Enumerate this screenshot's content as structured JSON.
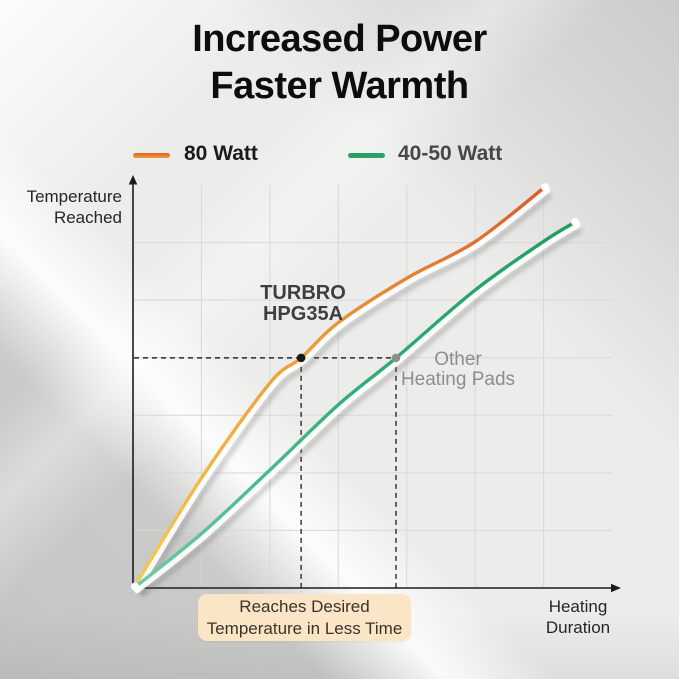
{
  "title": {
    "line1": "Increased Power",
    "line2": "Faster Warmth"
  },
  "legend": [
    {
      "label": "80 Watt",
      "color": "#E87425",
      "color_top": "#DF6526",
      "color_bottom": "#F0993A"
    },
    {
      "label": "40-50 Watt",
      "color": "#2BA269",
      "color_top": "#27A066",
      "color_bottom": "#2BA269"
    }
  ],
  "axis_labels": {
    "y1": "Temperature",
    "y2": "Reached",
    "x1": "Heating",
    "x2": "Duration"
  },
  "curve_labels": {
    "turbro1": "TURBRO",
    "turbro2": "HPG35A",
    "other1": "Other",
    "other2": "Heating Pads"
  },
  "callout": {
    "line1": "Reaches Desired",
    "line2": "Temperature in Less Time",
    "bg": "#FAE5C7",
    "text_color": "#39342A"
  },
  "colors": {
    "grid": "#D8D8D8",
    "axis": "#1C1C1C",
    "dashed": "#2B2B2B",
    "shadow": "rgba(100,100,100,0.30)",
    "highlight": "rgba(255,255,255,0.9)",
    "endpoint": "#FFFFFF",
    "background": "#ECECEB"
  },
  "chart_data": {
    "type": "line",
    "title": "Increased Power Faster Warmth",
    "xlabel": "Heating Duration",
    "ylabel": "Temperature Reached",
    "x_range": [
      0,
      1
    ],
    "y_range": [
      0,
      1
    ],
    "grid": {
      "cols": 7,
      "rows": 7,
      "on": true
    },
    "legend_position": "top",
    "series": [
      {
        "name": "80 Watt",
        "label": "TURBRO HPG35A",
        "gradient": [
          "#F2CC52",
          "#EF9C38",
          "#DB5C2B"
        ],
        "points": [
          [
            0.004,
            0.005
          ],
          [
            0.144,
            0.275
          ],
          [
            0.286,
            0.509
          ],
          [
            0.351,
            0.571
          ],
          [
            0.428,
            0.658
          ],
          [
            0.572,
            0.769
          ],
          [
            0.714,
            0.859
          ],
          [
            0.86,
            0.995
          ]
        ]
      },
      {
        "name": "40-50 Watt",
        "label": "Other Heating Pads",
        "gradient": [
          "#6CCBA6",
          "#30AE7B",
          "#1F9D60"
        ],
        "points": [
          [
            0.004,
            0.002
          ],
          [
            0.144,
            0.136
          ],
          [
            0.286,
            0.293
          ],
          [
            0.428,
            0.454
          ],
          [
            0.549,
            0.571
          ],
          [
            0.714,
            0.739
          ],
          [
            0.856,
            0.859
          ],
          [
            0.923,
            0.908
          ]
        ]
      }
    ],
    "markers": {
      "desired_level_y": 0.571,
      "points": [
        {
          "x": 0.351,
          "y": 0.571,
          "series": "80 Watt",
          "color": "#1A1A1A"
        },
        {
          "x": 0.549,
          "y": 0.571,
          "series": "40-50 Watt",
          "color": "#8F8F8F"
        }
      ]
    }
  }
}
